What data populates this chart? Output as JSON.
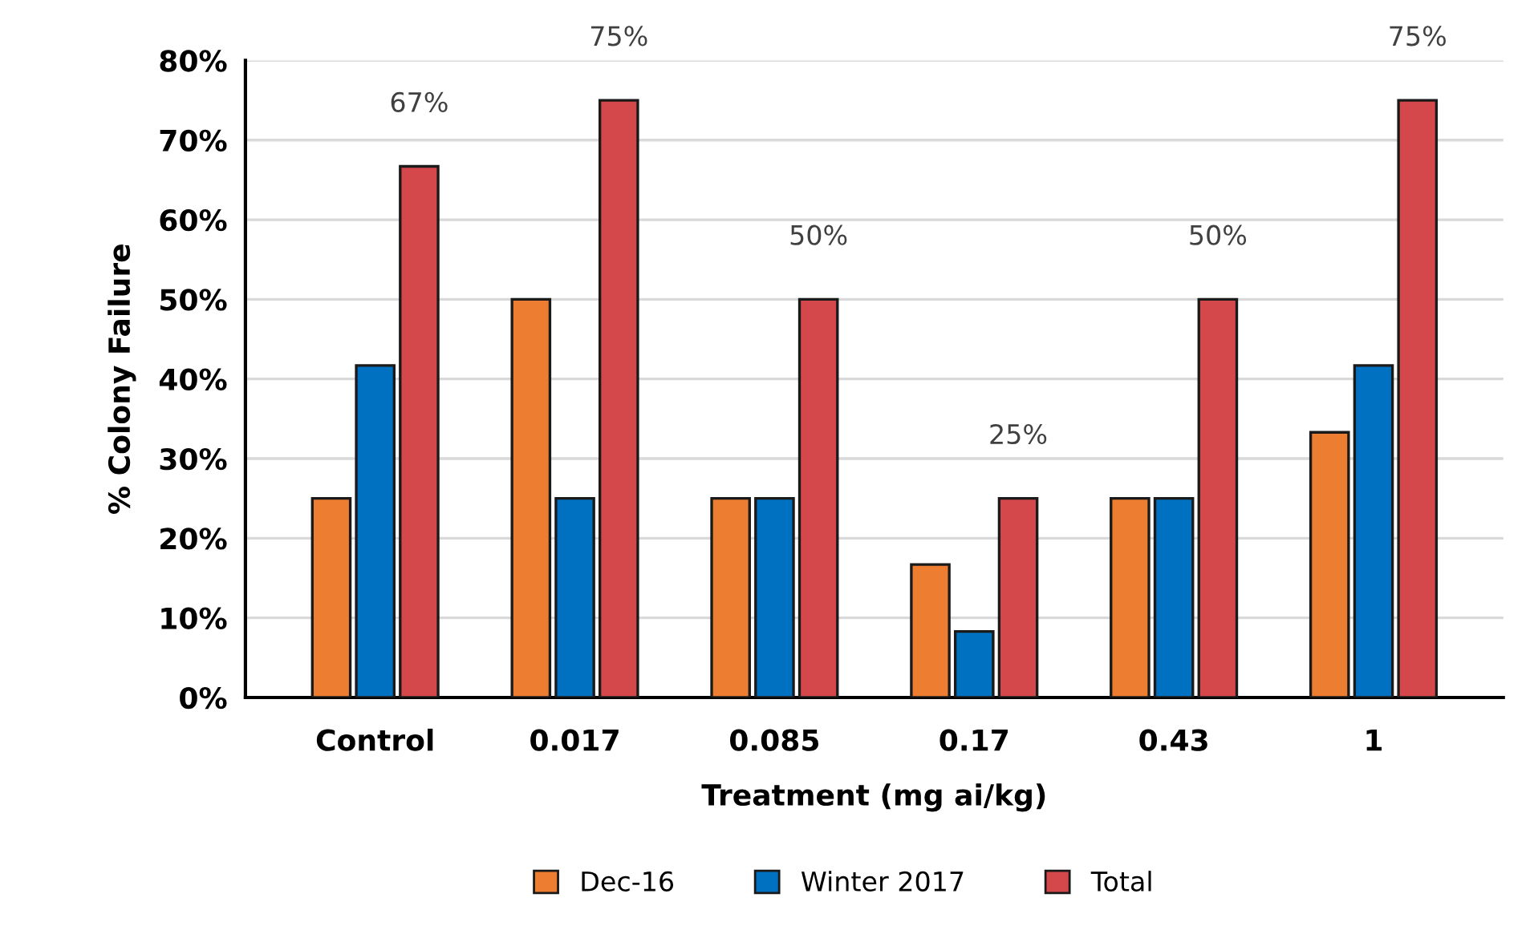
{
  "chart_data": {
    "type": "bar",
    "xlabel": "Treatment (mg ai/kg)",
    "ylabel": "% Colony Failure",
    "categories": [
      "Control",
      "0.017",
      "0.085",
      "0.17",
      "0.43",
      "1"
    ],
    "series": [
      {
        "name": "Dec-16",
        "color": "#ed7d31",
        "values": [
          25,
          50,
          25,
          16.7,
          25,
          33.3
        ]
      },
      {
        "name": "Winter 2017",
        "color": "#0070c0",
        "values": [
          41.7,
          25,
          25,
          8.3,
          25,
          41.7
        ]
      },
      {
        "name": "Total",
        "color": "#d4474b",
        "values": [
          66.7,
          75,
          50,
          25,
          50,
          75
        ],
        "value_labels": [
          "67%",
          "75%",
          "50%",
          "25%",
          "50%",
          "75%"
        ]
      }
    ],
    "ylim": [
      0,
      80
    ],
    "yticks": [
      {
        "value": 0,
        "label": "0%"
      },
      {
        "value": 10,
        "label": "10%"
      },
      {
        "value": 20,
        "label": "20%"
      },
      {
        "value": 30,
        "label": "30%"
      },
      {
        "value": 40,
        "label": "40%"
      },
      {
        "value": 50,
        "label": "50%"
      },
      {
        "value": 60,
        "label": "60%"
      },
      {
        "value": 70,
        "label": "70%"
      },
      {
        "value": 80,
        "label": "80%"
      }
    ],
    "grid": "y",
    "legend": "bottom"
  }
}
